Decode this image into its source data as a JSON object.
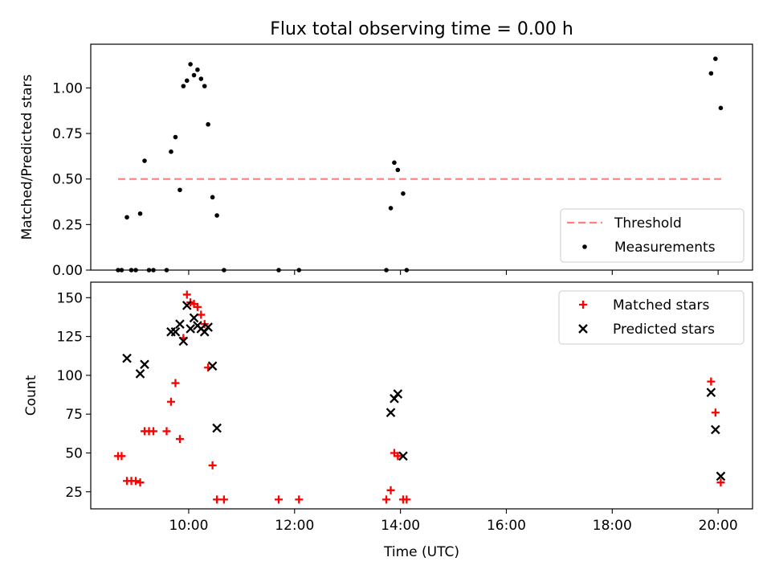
{
  "figure": {
    "title": "Flux total observing time = 0.00 h"
  },
  "chart_data": [
    {
      "type": "scatter",
      "panel": "top",
      "ylabel": "Matched/Predicted stars",
      "ylim": [
        0,
        1.24
      ],
      "yticks": [
        0.0,
        0.25,
        0.5,
        0.75,
        1.0
      ],
      "yticklabels": [
        "0.00",
        "0.25",
        "0.50",
        "0.75",
        "1.00"
      ],
      "xlim_hours": [
        8.15,
        20.65
      ],
      "grid": false,
      "legend": {
        "position": "lower-right",
        "entries": [
          {
            "label": "Threshold",
            "style": "dashed-line",
            "color": "#ff7f7f"
          },
          {
            "label": "Measurements",
            "style": "dot",
            "color": "#000000"
          }
        ]
      },
      "threshold": {
        "name": "Threshold",
        "y": 0.5,
        "x_range": [
          "08:40",
          "20:05"
        ],
        "color": "#ff7f7f"
      },
      "series": [
        {
          "name": "Measurements",
          "color": "#000000",
          "marker": "dot",
          "points": [
            [
              "08:40",
              0.0
            ],
            [
              "08:44",
              0.0
            ],
            [
              "08:50",
              0.29
            ],
            [
              "08:55",
              0.0
            ],
            [
              "09:00",
              0.0
            ],
            [
              "09:05",
              0.31
            ],
            [
              "09:10",
              0.6
            ],
            [
              "09:15",
              0.0
            ],
            [
              "09:20",
              0.0
            ],
            [
              "09:35",
              0.0
            ],
            [
              "09:40",
              0.65
            ],
            [
              "09:45",
              0.73
            ],
            [
              "09:50",
              0.44
            ],
            [
              "09:54",
              1.01
            ],
            [
              "09:58",
              1.04
            ],
            [
              "10:02",
              1.13
            ],
            [
              "10:06",
              1.07
            ],
            [
              "10:10",
              1.1
            ],
            [
              "10:14",
              1.05
            ],
            [
              "10:18",
              1.01
            ],
            [
              "10:22",
              0.8
            ],
            [
              "10:27",
              0.4
            ],
            [
              "10:32",
              0.3
            ],
            [
              "10:40",
              0.0
            ],
            [
              "11:42",
              0.0
            ],
            [
              "12:05",
              0.0
            ],
            [
              "13:44",
              0.0
            ],
            [
              "13:49",
              0.34
            ],
            [
              "13:53",
              0.59
            ],
            [
              "13:57",
              0.55
            ],
            [
              "14:03",
              0.42
            ],
            [
              "14:07",
              0.0
            ],
            [
              "19:52",
              1.08
            ],
            [
              "19:57",
              1.16
            ],
            [
              "20:03",
              0.89
            ]
          ]
        }
      ]
    },
    {
      "type": "scatter",
      "panel": "bottom",
      "xlabel": "Time (UTC)",
      "ylabel": "Count",
      "ylim": [
        14,
        160
      ],
      "yticks": [
        25,
        50,
        75,
        100,
        125,
        150
      ],
      "yticklabels": [
        "25",
        "50",
        "75",
        "100",
        "125",
        "150"
      ],
      "xlim_hours": [
        8.15,
        20.65
      ],
      "xticks_hours": [
        10,
        12,
        14,
        16,
        18,
        20
      ],
      "xticklabels": [
        "10:00",
        "12:00",
        "14:00",
        "16:00",
        "18:00",
        "20:00"
      ],
      "grid": false,
      "legend": {
        "position": "top-right",
        "entries": [
          {
            "label": "Matched stars",
            "style": "plus",
            "color": "#ff0000"
          },
          {
            "label": "Predicted stars",
            "style": "x",
            "color": "#000000"
          }
        ]
      },
      "series": [
        {
          "name": "Matched stars",
          "color": "#ff0000",
          "marker": "plus",
          "points": [
            [
              "08:40",
              48
            ],
            [
              "08:44",
              48
            ],
            [
              "08:50",
              32
            ],
            [
              "08:55",
              32
            ],
            [
              "09:00",
              32
            ],
            [
              "09:05",
              31
            ],
            [
              "09:10",
              64
            ],
            [
              "09:15",
              64
            ],
            [
              "09:20",
              64
            ],
            [
              "09:35",
              64
            ],
            [
              "09:40",
              83
            ],
            [
              "09:45",
              95
            ],
            [
              "09:50",
              59
            ],
            [
              "09:54",
              124
            ],
            [
              "09:58",
              152
            ],
            [
              "10:02",
              147
            ],
            [
              "10:06",
              146
            ],
            [
              "10:10",
              144
            ],
            [
              "10:14",
              139
            ],
            [
              "10:18",
              133
            ],
            [
              "10:22",
              105
            ],
            [
              "10:27",
              42
            ],
            [
              "10:32",
              20
            ],
            [
              "10:40",
              20
            ],
            [
              "11:42",
              20
            ],
            [
              "12:05",
              20
            ],
            [
              "13:44",
              20
            ],
            [
              "13:49",
              26
            ],
            [
              "13:53",
              50
            ],
            [
              "13:57",
              48
            ],
            [
              "14:03",
              20
            ],
            [
              "14:07",
              20
            ],
            [
              "19:52",
              96
            ],
            [
              "19:57",
              76
            ],
            [
              "20:03",
              31
            ]
          ]
        },
        {
          "name": "Predicted stars",
          "color": "#000000",
          "marker": "x",
          "points": [
            [
              "08:50",
              111
            ],
            [
              "09:05",
              101
            ],
            [
              "09:10",
              107
            ],
            [
              "09:40",
              128
            ],
            [
              "09:45",
              128
            ],
            [
              "09:50",
              133
            ],
            [
              "09:54",
              122
            ],
            [
              "09:58",
              145
            ],
            [
              "10:02",
              130
            ],
            [
              "10:06",
              137
            ],
            [
              "10:10",
              132
            ],
            [
              "10:14",
              130
            ],
            [
              "10:18",
              128
            ],
            [
              "10:22",
              131
            ],
            [
              "10:27",
              106
            ],
            [
              "10:32",
              66
            ],
            [
              "13:49",
              76
            ],
            [
              "13:53",
              85
            ],
            [
              "13:57",
              88
            ],
            [
              "14:03",
              48
            ],
            [
              "19:52",
              89
            ],
            [
              "19:57",
              65
            ],
            [
              "20:03",
              35
            ]
          ]
        }
      ]
    }
  ]
}
